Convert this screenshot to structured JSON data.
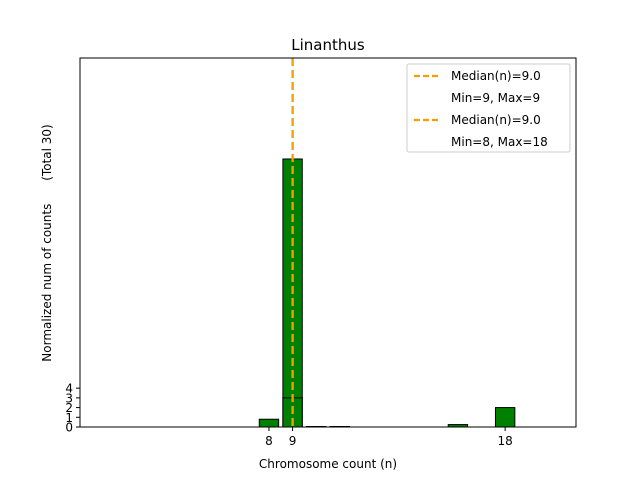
{
  "chart_data": {
    "type": "bar",
    "title": "Linanthus",
    "xlabel": "Chromosome count (n)",
    "ylabel": "Normalized num of counts      (Total 30)",
    "xlim": [
      0,
      21
    ],
    "ylim": [
      0,
      38
    ],
    "x_ticks": [
      8,
      9,
      18
    ],
    "y_ticks": [
      0,
      1,
      2,
      3,
      4
    ],
    "grid": false,
    "legend_position": "top-right",
    "colors": {
      "bar": "#008000",
      "median": "#f0a000"
    },
    "series": [
      {
        "bars": [
          {
            "x": 9,
            "value": 27.6
          }
        ],
        "median": 9.0,
        "legend_line": "Median(n)=9.0",
        "legend_range": "Min=9, Max=9"
      },
      {
        "bars": [
          {
            "x": 8,
            "value": 0.8
          },
          {
            "x": 9,
            "value": 3.0
          },
          {
            "x": 10,
            "value": 0.05
          },
          {
            "x": 11,
            "value": 0.05
          },
          {
            "x": 16,
            "value": 0.25
          },
          {
            "x": 18,
            "value": 2.0
          }
        ],
        "median": 9.0,
        "legend_line": "Median(n)=9.0",
        "legend_range": "Min=8, Max=18"
      }
    ]
  }
}
